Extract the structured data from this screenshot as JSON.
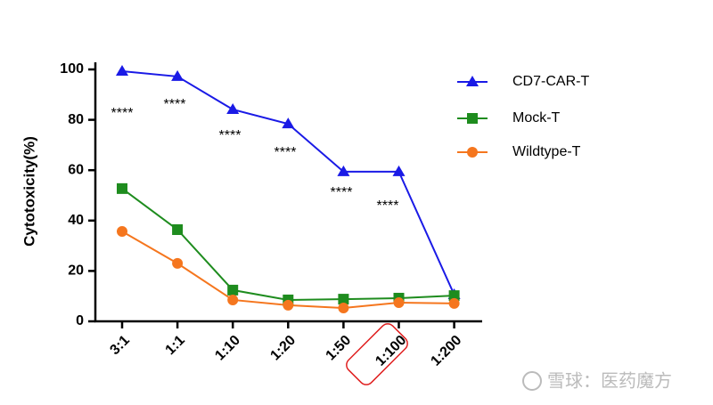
{
  "chart_data": {
    "type": "line",
    "y_label": "Cytotoxicity(%)",
    "categories": [
      "3:1",
      "1:1",
      "1:10",
      "1:20",
      "1:50",
      "1:100",
      "1:200"
    ],
    "series": [
      {
        "name": "CD7-CAR-T",
        "color": "#1a1ae6",
        "marker": "triangle",
        "values": [
          99.3,
          97.2,
          84.1,
          78.4,
          59.4,
          59.4,
          10.6
        ]
      },
      {
        "name": "Mock-T",
        "color": "#1e8c1e",
        "marker": "square",
        "values": [
          52.7,
          36.4,
          12.4,
          8.5,
          8.8,
          9.2,
          10.2
        ]
      },
      {
        "name": "Wildtype-T",
        "color": "#f5761e",
        "marker": "circle",
        "values": [
          35.7,
          23,
          8.5,
          6.4,
          5.3,
          7.4,
          7.1
        ]
      }
    ],
    "ylim": [
      0,
      100
    ],
    "yticks": [
      0,
      20,
      40,
      60,
      80,
      100
    ],
    "annotations": [
      "****",
      "****",
      "****",
      "****",
      "****",
      "****"
    ],
    "watermark": "雪球：医药魔方"
  }
}
